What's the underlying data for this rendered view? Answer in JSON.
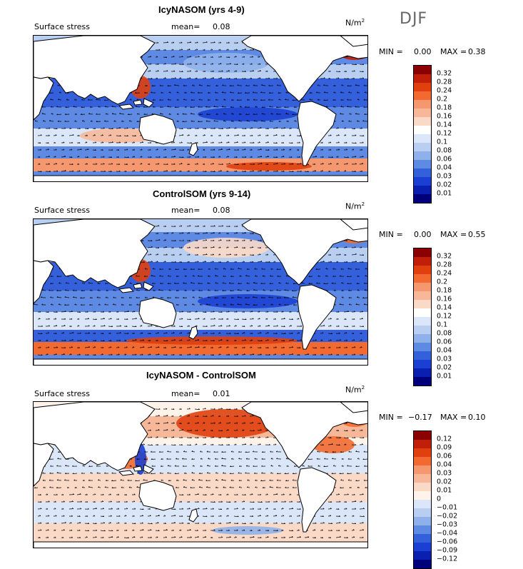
{
  "season": "DJF",
  "units_base": "N/m",
  "units_exp": "2",
  "field_label": "Surface stress",
  "panels": [
    {
      "title": "IcyNASOM (yrs 4-9)",
      "mean_label": "mean=",
      "mean": "0.08",
      "min_label": "MIN =",
      "min": "0.00",
      "max_label": "MAX =",
      "max": "0.38",
      "levels": [
        "0.32",
        "0.28",
        "0.24",
        "0.2",
        "0.18",
        "0.16",
        "0.14",
        "0.12",
        "0.1",
        "0.08",
        "0.06",
        "0.04",
        "0.03",
        "0.02",
        "0.01"
      ],
      "colors": [
        "#8b0000",
        "#c01f0a",
        "#e0400e",
        "#f26a30",
        "#f59870",
        "#f7b89a",
        "#fbd9c7",
        "#ffffff",
        "#dbe7f8",
        "#b8cff2",
        "#8fb1eb",
        "#5f8ae4",
        "#3560dc",
        "#1b3fd0",
        "#0a1fb0",
        "#00007a"
      ]
    },
    {
      "title": "ControlSOM (yrs 9-14)",
      "mean_label": "mean=",
      "mean": "0.08",
      "min_label": "MIN =",
      "min": "0.00",
      "max_label": "MAX =",
      "max": "0.55",
      "levels": [
        "0.32",
        "0.28",
        "0.24",
        "0.2",
        "0.18",
        "0.16",
        "0.14",
        "0.12",
        "0.1",
        "0.08",
        "0.06",
        "0.04",
        "0.03",
        "0.02",
        "0.01"
      ],
      "colors": [
        "#8b0000",
        "#c01f0a",
        "#e0400e",
        "#f26a30",
        "#f59870",
        "#f7b89a",
        "#fbd9c7",
        "#ffffff",
        "#dbe7f8",
        "#b8cff2",
        "#8fb1eb",
        "#5f8ae4",
        "#3560dc",
        "#1b3fd0",
        "#0a1fb0",
        "#00007a"
      ]
    },
    {
      "title": "IcyNASOM - ControlSOM",
      "mean_label": "mean=",
      "mean": "0.01",
      "min_label": "MIN =",
      "min": "−0.17",
      "max_label": "MAX =",
      "max": "0.10",
      "levels": [
        "0.12",
        "0.09",
        "0.06",
        "0.04",
        "0.03",
        "0.02",
        "0.01",
        "0",
        "−0.01",
        "−0.02",
        "−0.03",
        "−0.04",
        "−0.06",
        "−0.09",
        "−0.12"
      ],
      "colors": [
        "#8b0000",
        "#c01f0a",
        "#e0400e",
        "#f26a30",
        "#f59870",
        "#f7b89a",
        "#fbd9c7",
        "#fff3ea",
        "#dbe7f8",
        "#b8cff2",
        "#8fb1eb",
        "#5f8ae4",
        "#3560dc",
        "#1b3fd0",
        "#0a1fb0",
        "#00007a"
      ]
    }
  ]
}
